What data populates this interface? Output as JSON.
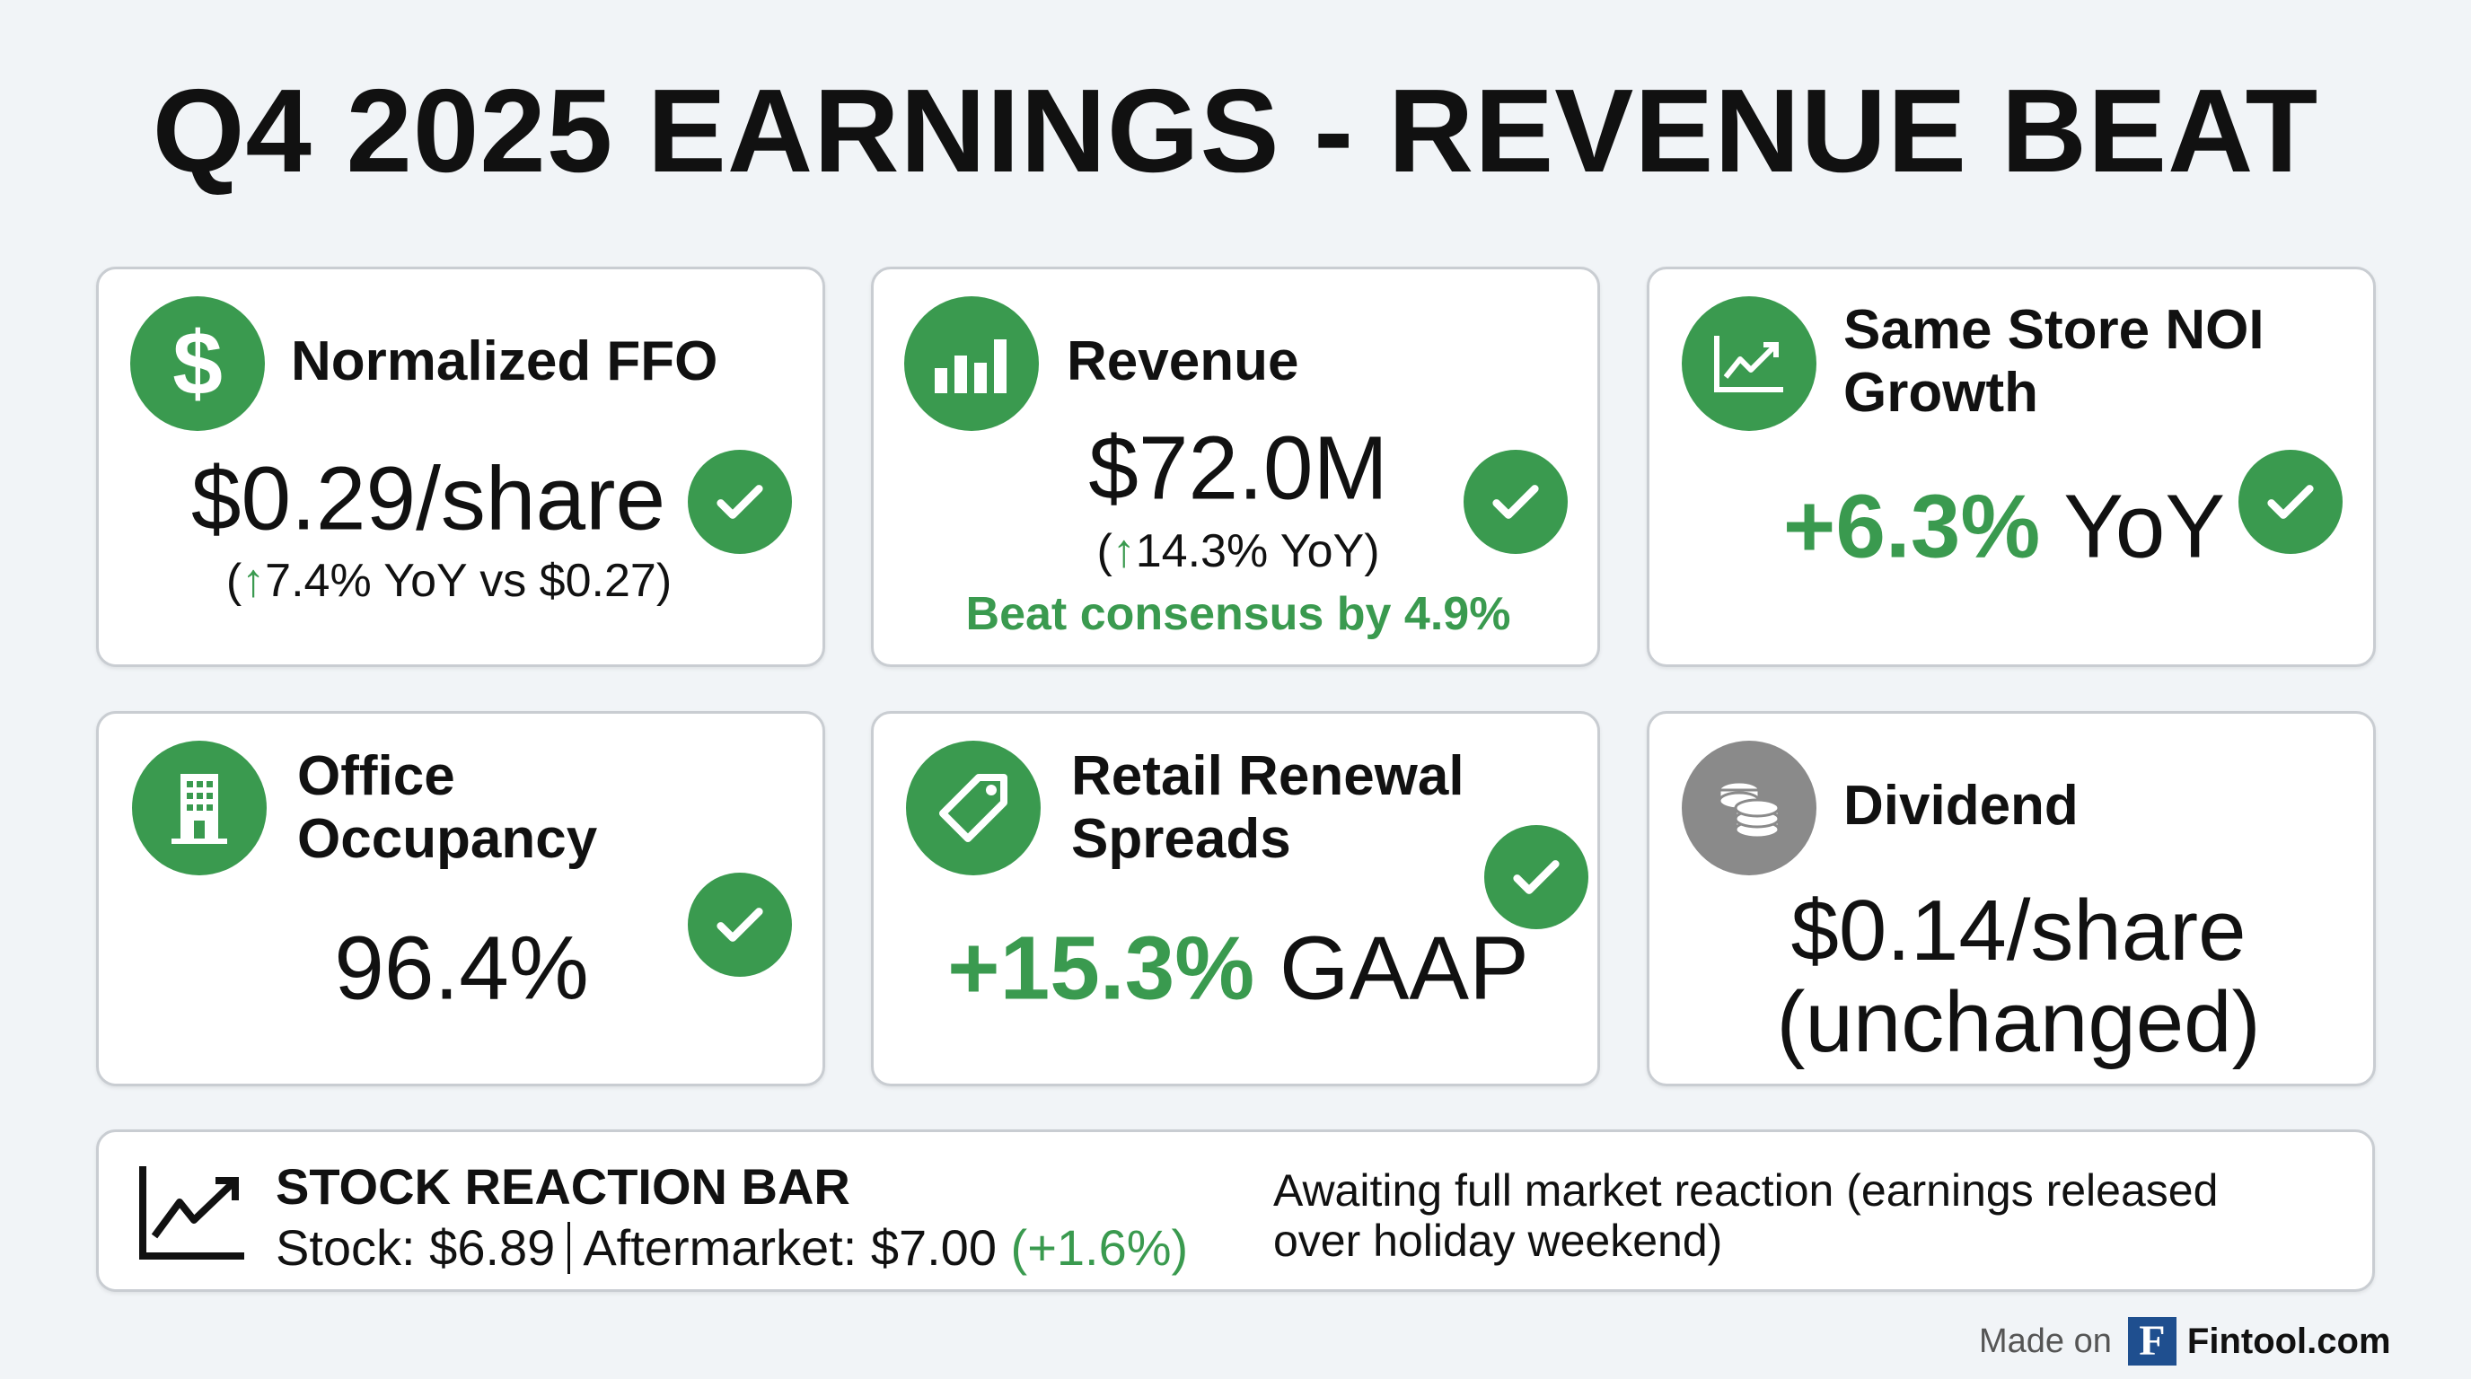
{
  "title": "Q4 2025 EARNINGS - REVENUE BEAT",
  "accent_color": "#3a9a4f",
  "cards": [
    {
      "title": "Normalized FFO",
      "value": "$0.29/share",
      "sub_arrow": "↑",
      "sub_text": "7.4% YoY vs $0.27",
      "sub_open": "(",
      "sub_close": ")",
      "icon": "dollar-icon",
      "status": "check"
    },
    {
      "title": "Revenue",
      "value": "$72.0M",
      "sub_arrow": "↑",
      "sub_text": "14.3% YoY",
      "sub_open": "(",
      "sub_close": ")",
      "note": "Beat consensus by 4.9%",
      "icon": "bar-chart-icon",
      "status": "check"
    },
    {
      "title_line1": "Same Store NOI",
      "title_line2": "Growth",
      "value_green": "+6.3%",
      "value_rest": "YoY",
      "icon": "trend-chart-icon",
      "status": "check"
    },
    {
      "title_line1": "Office",
      "title_line2": "Occupancy",
      "value": "96.4%",
      "icon": "building-icon",
      "status": "check"
    },
    {
      "title_line1": "Retail Renewal",
      "title_line2": "Spreads",
      "value_green": "+15.3%",
      "value_rest": "GAAP",
      "icon": "tag-icon",
      "status": "check"
    },
    {
      "title": "Dividend",
      "value_line1": "$0.14/share",
      "value_line2": "(unchanged)",
      "icon": "coins-icon"
    }
  ],
  "stock_bar": {
    "title": "STOCK REACTION BAR",
    "stock": "Stock: $6.89",
    "aftermarket": "Aftermarket: $7.00",
    "change": "(+1.6%)",
    "note_line1": "Awaiting full market reaction (earnings released",
    "note_line2": "over holiday weekend)"
  },
  "footer": {
    "made_on": "Made on",
    "logo_letter": "F",
    "brand": "Fintool.com"
  }
}
